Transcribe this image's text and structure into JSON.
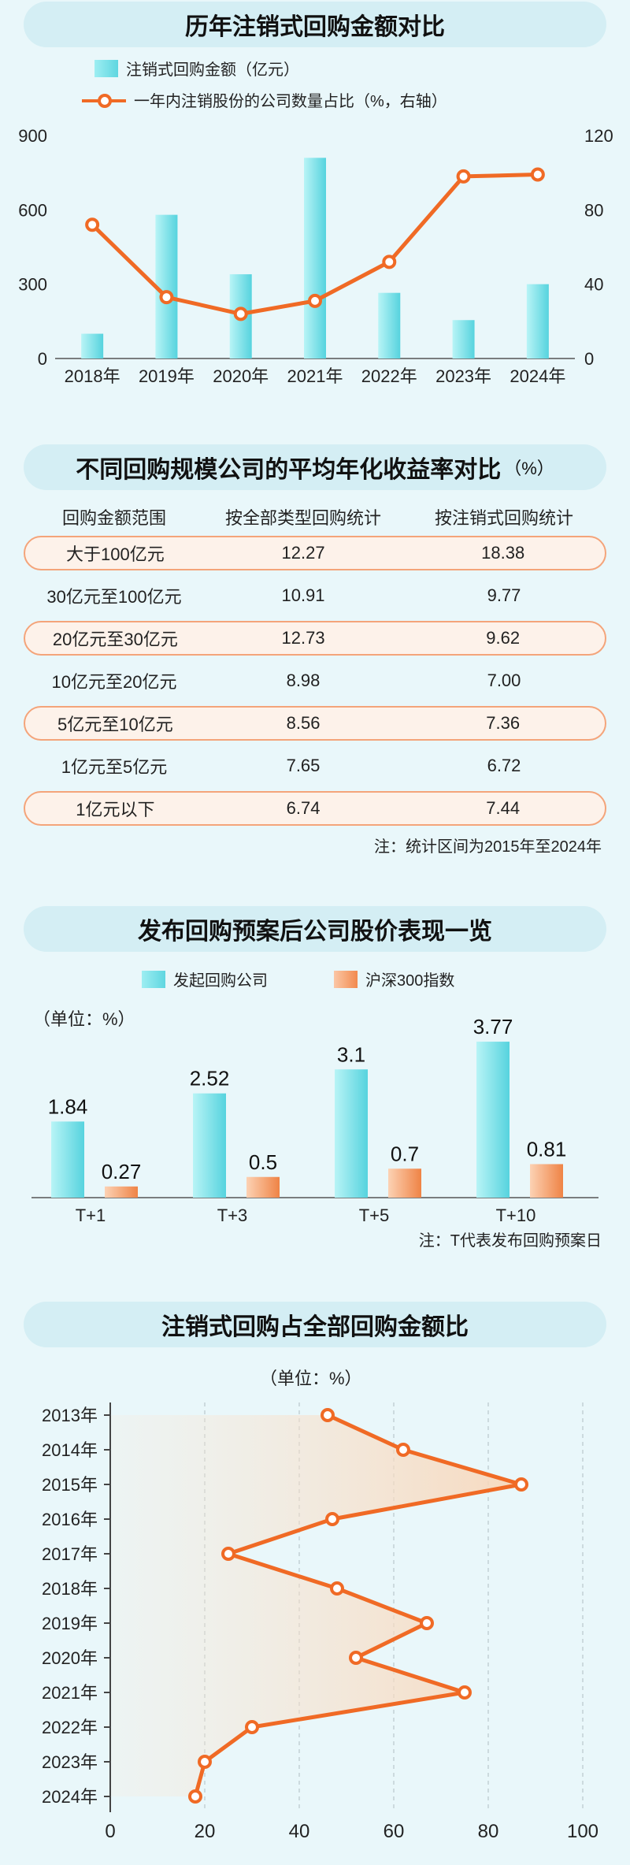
{
  "section1": {
    "title": "历年注销式回购金额对比",
    "legend_bar": "注销式回购金额（亿元）",
    "legend_line": "一年内注销股份的公司数量占比（%，右轴）"
  },
  "section2": {
    "title": "不同回购规模公司的平均年化收益率对比",
    "unit": "（%）",
    "headers": [
      "回购金额范围",
      "按全部类型回购统计",
      "按注销式回购统计"
    ],
    "rows": [
      [
        "大于100亿元",
        "12.27",
        "18.38"
      ],
      [
        "30亿元至100亿元",
        "10.91",
        "9.77"
      ],
      [
        "20亿元至30亿元",
        "12.73",
        "9.62"
      ],
      [
        "10亿元至20亿元",
        "8.98",
        "7.00"
      ],
      [
        "5亿元至10亿元",
        "8.56",
        "7.36"
      ],
      [
        "1亿元至5亿元",
        "7.65",
        "6.72"
      ],
      [
        "1亿元以下",
        "6.74",
        "7.44"
      ]
    ],
    "note": "注：统计区间为2015年至2024年"
  },
  "section3": {
    "title": "发布回购预案后公司股价表现一览",
    "legend_a": "发起回购公司",
    "legend_b": "沪深300指数",
    "unit": "（单位：%）",
    "note": "注：T代表发布回购预案日"
  },
  "section4": {
    "title": "注销式回购占全部回购金额比",
    "unit": "（单位：%）"
  },
  "colors": {
    "cyan": "#5fd6e0",
    "orange": "#f06a25",
    "background": "#e9f7fa"
  },
  "chart_data": [
    {
      "type": "bar+line",
      "title": "历年注销式回购金额对比",
      "categories": [
        "2018年",
        "2019年",
        "2020年",
        "2021年",
        "2022年",
        "2023年",
        "2024年"
      ],
      "series": [
        {
          "name": "注销式回购金额（亿元）",
          "type": "bar",
          "axis": "left",
          "values": [
            100,
            580,
            340,
            810,
            265,
            155,
            300
          ]
        },
        {
          "name": "一年内注销股份的公司数量占比（%，右轴）",
          "type": "line",
          "axis": "right",
          "values": [
            72,
            33,
            24,
            31,
            52,
            98,
            99
          ]
        }
      ],
      "ylim_left": [
        0,
        900
      ],
      "yticks_left": [
        "0",
        "300",
        "600",
        "900"
      ],
      "ylim_right": [
        0,
        120
      ],
      "yticks_right": [
        "0",
        "40",
        "80",
        "120"
      ]
    },
    {
      "type": "table",
      "title": "不同回购规模公司的平均年化收益率对比",
      "columns": [
        "回购金额范围",
        "按全部类型回购统计",
        "按注销式回购统计"
      ],
      "rows": [
        [
          "大于100亿元",
          12.27,
          18.38
        ],
        [
          "30亿元至100亿元",
          10.91,
          9.77
        ],
        [
          "20亿元至30亿元",
          12.73,
          9.62
        ],
        [
          "10亿元至20亿元",
          8.98,
          7.0
        ],
        [
          "5亿元至10亿元",
          8.56,
          7.36
        ],
        [
          "1亿元至5亿元",
          7.65,
          6.72
        ],
        [
          "1亿元以下",
          6.74,
          7.44
        ]
      ]
    },
    {
      "type": "bar",
      "title": "发布回购预案后公司股价表现一览",
      "categories": [
        "T+1",
        "T+3",
        "T+5",
        "T+10"
      ],
      "series": [
        {
          "name": "发起回购公司",
          "values": [
            1.84,
            2.52,
            3.1,
            3.77
          ],
          "labels": [
            "1.84",
            "2.52",
            "3.1",
            "3.77"
          ]
        },
        {
          "name": "沪深300指数",
          "values": [
            0.27,
            0.5,
            0.7,
            0.81
          ],
          "labels": [
            "0.27",
            "0.5",
            "0.7",
            "0.81"
          ]
        }
      ],
      "ylim": [
        0,
        4
      ]
    },
    {
      "type": "line",
      "title": "注销式回购占全部回购金额比",
      "orientation": "horizontal",
      "categories": [
        "2013年",
        "2014年",
        "2015年",
        "2016年",
        "2017年",
        "2018年",
        "2019年",
        "2020年",
        "2021年",
        "2022年",
        "2023年",
        "2024年"
      ],
      "values": [
        46,
        62,
        87,
        47,
        25,
        48,
        67,
        52,
        75,
        30,
        20,
        18
      ],
      "xlim": [
        0,
        100
      ],
      "xticks": [
        "0",
        "20",
        "40",
        "60",
        "80",
        "100"
      ],
      "grid": true
    }
  ]
}
